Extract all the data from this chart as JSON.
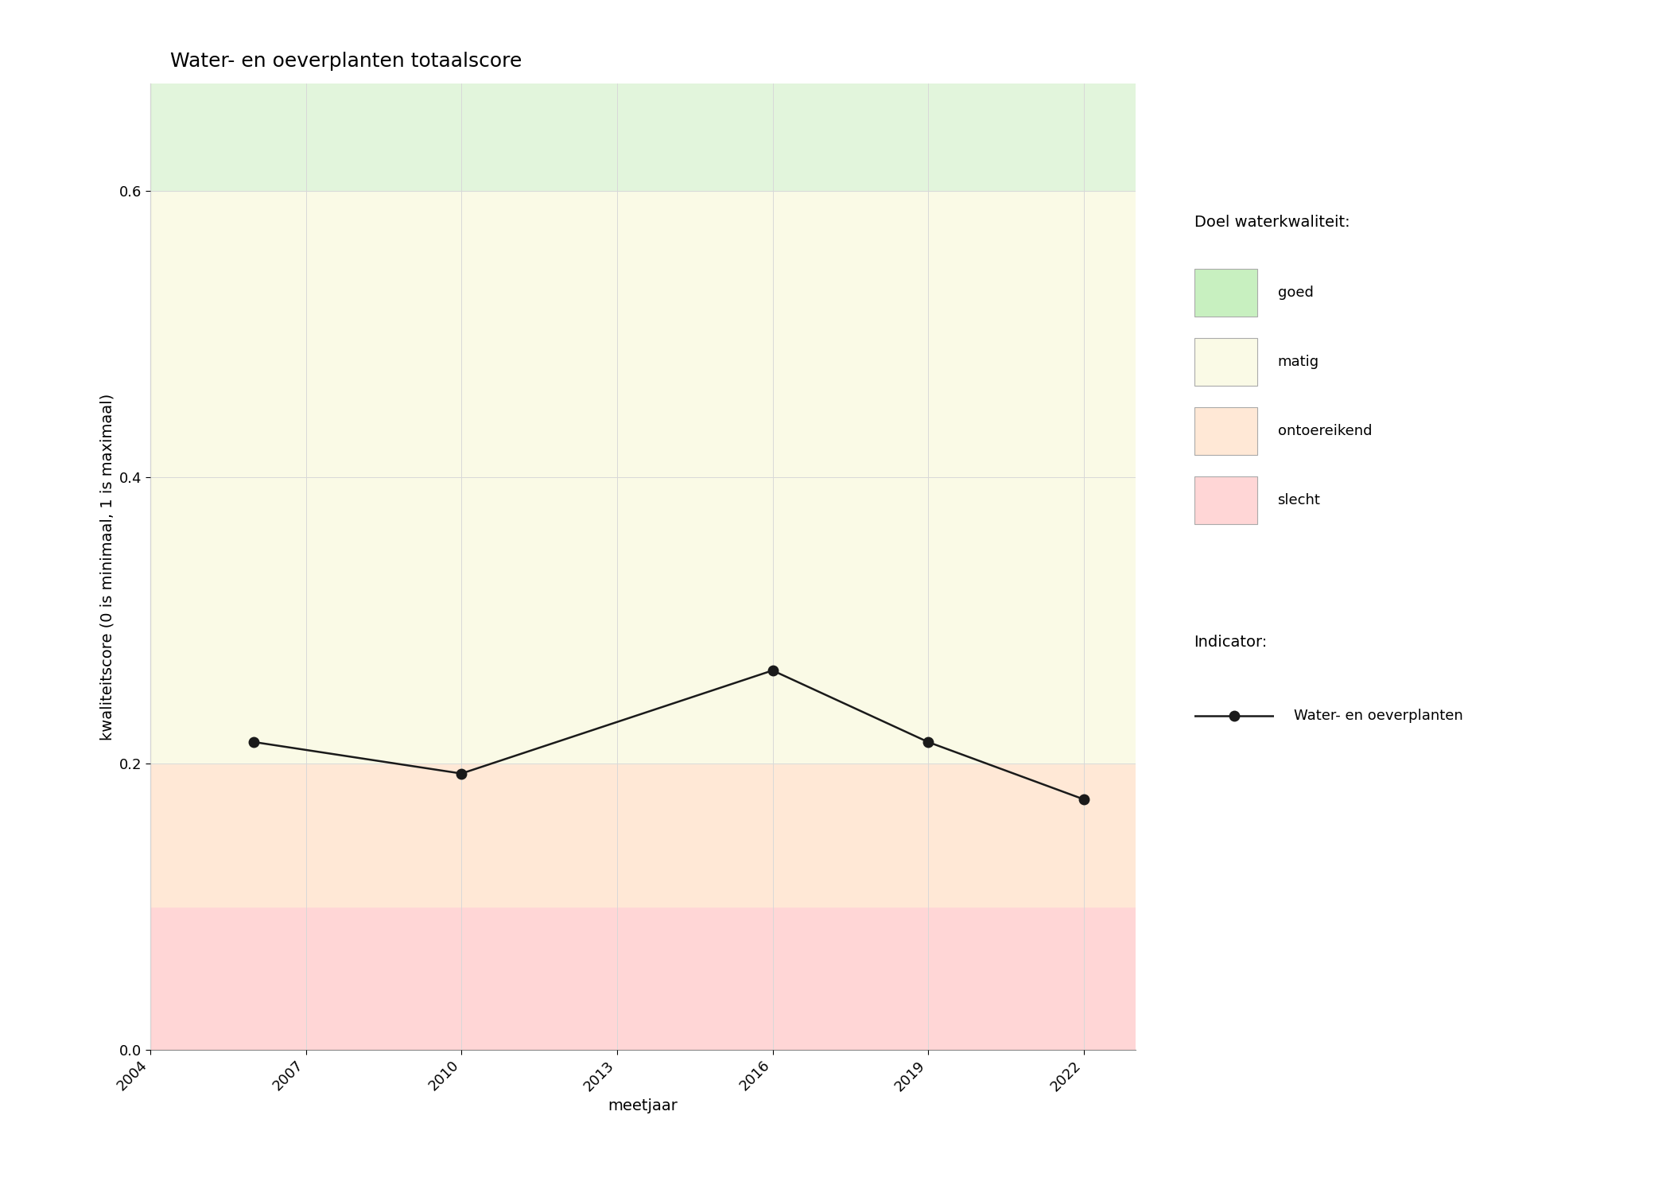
{
  "title": "Water- en oeverplanten totaalscore",
  "xlabel": "meetjaar",
  "ylabel": "kwaliteitscore (0 is minimaal, 1 is maximaal)",
  "x_data": [
    2006,
    2010,
    2016,
    2019,
    2022
  ],
  "y_data": [
    0.215,
    0.193,
    0.265,
    0.215,
    0.175
  ],
  "ylim": [
    0,
    0.675
  ],
  "xlim": [
    2004,
    2023
  ],
  "xticks": [
    2004,
    2007,
    2010,
    2013,
    2016,
    2019,
    2022
  ],
  "yticks": [
    0.0,
    0.2,
    0.4,
    0.6
  ],
  "bg_bands": [
    {
      "ymin": 0.0,
      "ymax": 0.1,
      "color": "#FFD6D6",
      "label": "slecht"
    },
    {
      "ymin": 0.1,
      "ymax": 0.2,
      "color": "#FFE8D6",
      "label": "ontoereikend"
    },
    {
      "ymin": 0.2,
      "ymax": 0.6,
      "color": "#FAFAE6",
      "label": "matig"
    },
    {
      "ymin": 0.6,
      "ymax": 0.675,
      "color": "#E2F5DC",
      "label": "goed"
    }
  ],
  "line_color": "#1a1a1a",
  "marker": "o",
  "marker_size": 9,
  "marker_color": "#1a1a1a",
  "line_width": 1.8,
  "grid_color": "#D8D8D8",
  "bg_color": "#FFFFFF",
  "legend_title_doel": "Doel waterkwaliteit:",
  "legend_title_indicator": "Indicator:",
  "legend_indicator_label": "Water- en oeverplanten",
  "legend_colors": {
    "goed": "#C8F0C0",
    "matig": "#FAFAE6",
    "ontoereikend": "#FFE8D6",
    "slecht": "#FFD6D6"
  },
  "legend_labels_order": [
    "goed",
    "matig",
    "ontoereikend",
    "slecht"
  ],
  "title_fontsize": 18,
  "axis_label_fontsize": 14,
  "tick_fontsize": 13,
  "legend_fontsize": 13
}
